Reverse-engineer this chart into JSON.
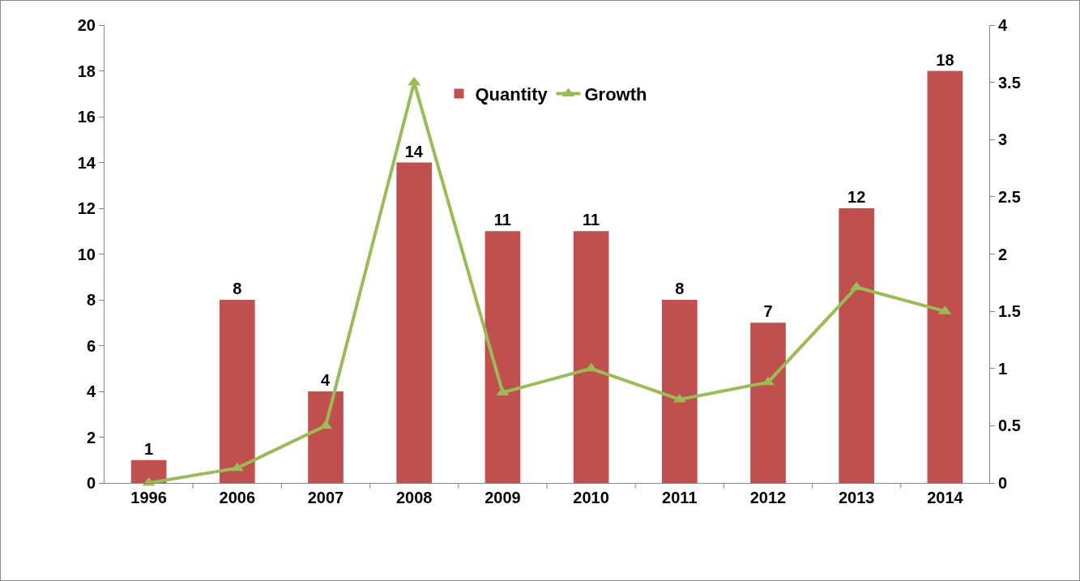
{
  "chart_data": {
    "type": "bar",
    "categories": [
      "1996",
      "2006",
      "2007",
      "2008",
      "2009",
      "2010",
      "2011",
      "2012",
      "2013",
      "2014"
    ],
    "series": [
      {
        "name": "Quantity",
        "color": "#c0504d",
        "values": [
          1,
          8,
          4,
          14,
          11,
          11,
          8,
          7,
          12,
          18
        ],
        "value_labels": [
          "1",
          "8",
          "4",
          "14",
          "11",
          "11",
          "8",
          "7",
          "12",
          "18"
        ]
      },
      {
        "name": "Growth",
        "type": "line",
        "axis": "y2",
        "color": "#9bbb59",
        "marker": "triangle",
        "values": [
          0,
          0.13,
          0.5,
          3.5,
          0.79,
          1,
          0.73,
          0.88,
          1.71,
          1.5
        ]
      }
    ],
    "ylim": [
      0,
      20
    ],
    "yticks": [
      0,
      2,
      4,
      6,
      8,
      10,
      12,
      14,
      16,
      18,
      20
    ],
    "y2lim": [
      0,
      4
    ],
    "y2ticks": [
      0,
      0.5,
      1,
      1.5,
      2,
      2.5,
      3,
      3.5,
      4
    ],
    "legend": "top"
  }
}
